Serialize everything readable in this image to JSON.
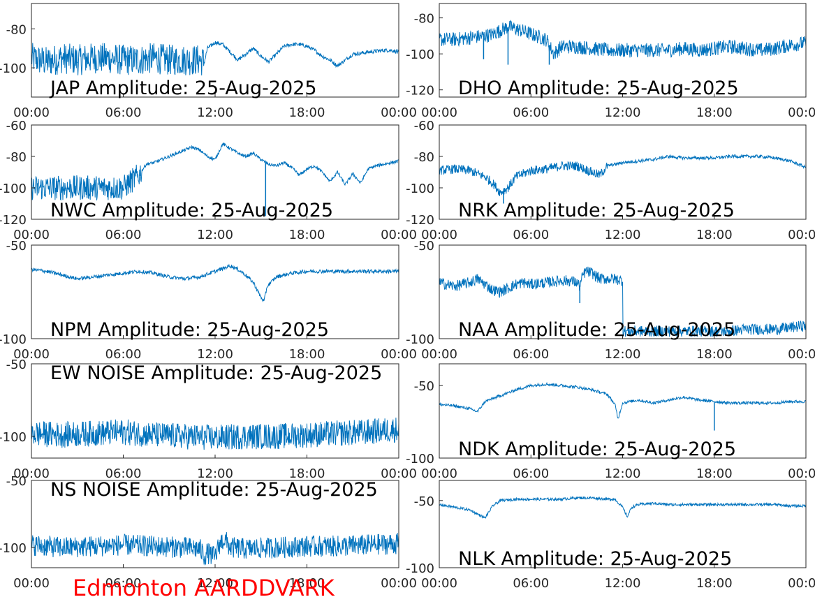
{
  "figure": {
    "station_label": "Edmonton AARDDVARK",
    "station_label_color": "#ff0000",
    "line_color": "#0072bd",
    "x_tick_labels": [
      "00:00",
      "06:00",
      "12:00",
      "18:00",
      "00:00"
    ]
  },
  "chart_data": [
    {
      "type": "line",
      "title": "JAP Amplitude: 25-Aug-2025",
      "x_unit": "hours",
      "xlim": [
        0,
        24
      ],
      "ylim": [
        -115,
        -67
      ],
      "yticks": [
        -80,
        -100
      ],
      "ytick_labels": [
        "-80",
        "-100"
      ],
      "x": [
        0,
        1,
        2,
        3,
        4,
        5,
        6,
        7,
        8,
        9,
        10,
        11,
        11.3,
        11.5,
        12,
        12.5,
        13,
        13.5,
        14,
        14.5,
        15,
        15.5,
        16,
        16.5,
        17,
        17.5,
        18,
        18.5,
        19,
        19.5,
        20,
        20.5,
        21,
        22,
        23,
        23.5,
        24
      ],
      "y": [
        -95,
        -97,
        -95,
        -96,
        -95,
        -95,
        -96,
        -96,
        -95,
        -96,
        -96,
        -96,
        -97,
        -90,
        -87,
        -88,
        -92,
        -96,
        -93,
        -90,
        -94,
        -97,
        -93,
        -89,
        -88,
        -88,
        -89,
        -91,
        -94,
        -96,
        -99,
        -96,
        -93,
        -92,
        -91,
        -91,
        -92
      ],
      "noise_amp": 8,
      "noise_until": 11.3
    },
    {
      "type": "line",
      "title": "DHO Amplitude: 25-Aug-2025",
      "x_unit": "hours",
      "xlim": [
        0,
        24
      ],
      "ylim": [
        -124,
        -72
      ],
      "yticks": [
        -80,
        -100,
        -120
      ],
      "ytick_labels": [
        "-80",
        "-100",
        "-120"
      ],
      "x": [
        0,
        1,
        2,
        3,
        3.5,
        4,
        4.5,
        5,
        6,
        7,
        7.5,
        8,
        9,
        10,
        11,
        12,
        13,
        14,
        15,
        16,
        17,
        18,
        19,
        20,
        21,
        22,
        23,
        24
      ],
      "y": [
        -92,
        -92,
        -91,
        -90,
        -89,
        -87,
        -85,
        -86,
        -89,
        -92,
        -100,
        -96,
        -96,
        -97,
        -98,
        -98,
        -98,
        -98,
        -98,
        -97,
        -98,
        -97,
        -96,
        -97,
        -98,
        -97,
        -95,
        -94
      ],
      "noise_amp": 4,
      "noise_until": 24,
      "spikes": [
        {
          "x": 2.9,
          "y": -103
        },
        {
          "x": 4.5,
          "y": -106
        },
        {
          "x": 7.2,
          "y": -106
        }
      ]
    },
    {
      "type": "line",
      "title": "NWC Amplitude: 25-Aug-2025",
      "x_unit": "hours",
      "xlim": [
        0,
        24
      ],
      "ylim": [
        -120,
        -60
      ],
      "yticks": [
        -60,
        -80,
        -100,
        -120
      ],
      "ytick_labels": [
        "-60",
        "-80",
        "-100",
        "-120"
      ],
      "x": [
        0,
        2,
        4,
        6,
        7,
        7.5,
        8,
        9,
        10,
        10.5,
        11,
        11.5,
        12,
        12.5,
        13,
        13.5,
        14,
        14.5,
        15,
        15.5,
        16,
        16.5,
        17,
        17.5,
        18,
        18.5,
        19,
        19.5,
        20,
        20.5,
        21,
        21.5,
        22,
        22.5,
        23,
        24
      ],
      "y": [
        -100,
        -100,
        -100,
        -100,
        -92,
        -85,
        -84,
        -80,
        -76,
        -74,
        -76,
        -80,
        -82,
        -72,
        -75,
        -78,
        -80,
        -78,
        -82,
        -85,
        -86,
        -84,
        -87,
        -92,
        -88,
        -86,
        -90,
        -96,
        -90,
        -98,
        -91,
        -97,
        -88,
        -86,
        -85,
        -83
      ],
      "noise_amp": 8,
      "noise_until": 7.2,
      "spikes": [
        {
          "x": 15.3,
          "y": -118
        }
      ]
    },
    {
      "type": "line",
      "title": "NRK Amplitude: 25-Aug-2025",
      "x_unit": "hours",
      "xlim": [
        0,
        24
      ],
      "ylim": [
        -120,
        -60
      ],
      "yticks": [
        -60,
        -80,
        -100,
        -120
      ],
      "ytick_labels": [
        "-60",
        "-80",
        "-100",
        "-120"
      ],
      "x": [
        0,
        1,
        2,
        3,
        3.5,
        4,
        4.5,
        5,
        6,
        7,
        8,
        9,
        10,
        10.5,
        11,
        12,
        13,
        14,
        15,
        16,
        17,
        18,
        19,
        20,
        21,
        22,
        23,
        24
      ],
      "y": [
        -89,
        -88,
        -89,
        -93,
        -97,
        -103,
        -100,
        -93,
        -89,
        -88,
        -86,
        -86,
        -90,
        -92,
        -86,
        -84,
        -83,
        -82,
        -80,
        -81,
        -81,
        -81,
        -80,
        -80,
        -80,
        -81,
        -83,
        -87
      ],
      "noise_amp": 3,
      "noise_until": 11,
      "spikes": [
        {
          "x": 4.2,
          "y": -110
        }
      ]
    },
    {
      "type": "line",
      "title": "NPM Amplitude: 25-Aug-2025",
      "x_unit": "hours",
      "xlim": [
        0,
        24
      ],
      "ylim": [
        -100,
        -50
      ],
      "yticks": [
        -50,
        -100
      ],
      "ytick_labels": [
        "-50",
        "-100"
      ],
      "x": [
        0,
        1,
        2,
        3,
        4,
        5,
        6,
        7,
        8,
        9,
        10,
        11,
        12,
        13,
        13.5,
        14,
        14.5,
        15,
        15.2,
        15.4,
        16,
        17,
        18,
        19,
        20,
        21,
        22,
        23,
        24
      ],
      "y": [
        -63,
        -64,
        -66,
        -68,
        -67,
        -66,
        -65,
        -64,
        -65,
        -67,
        -68,
        -67,
        -64,
        -61,
        -63,
        -66,
        -70,
        -78,
        -80,
        -72,
        -67,
        -65,
        -64,
        -64,
        -64,
        -64,
        -64,
        -64,
        -64
      ],
      "noise_amp": 1,
      "noise_until": 24
    },
    {
      "type": "line",
      "title": "NAA Amplitude: 25-Aug-2025",
      "x_unit": "hours",
      "xlim": [
        0,
        24
      ],
      "ylim": [
        -100,
        -50
      ],
      "yticks": [
        -50,
        -100
      ],
      "ytick_labels": [
        "-50",
        "-100"
      ],
      "x": [
        0,
        1,
        2,
        2.5,
        3,
        3.5,
        4,
        4.5,
        5,
        5.5,
        6,
        7,
        8,
        8.5,
        9,
        9.2,
        9.4,
        9.6,
        10,
        10.5,
        11,
        11.5,
        12,
        12.01,
        13,
        14,
        15,
        16,
        17,
        18,
        19,
        20,
        21,
        22,
        23,
        24
      ],
      "y": [
        -70,
        -72,
        -70,
        -68,
        -71,
        -74,
        -75,
        -73,
        -71,
        -70,
        -71,
        -70,
        -69,
        -69,
        -70,
        -72,
        -66,
        -64,
        -65,
        -68,
        -68,
        -68,
        -69,
        -96,
        -96,
        -96,
        -96,
        -96,
        -96,
        -96,
        -96,
        -95,
        -95,
        -95,
        -94,
        -93
      ],
      "noise_amp": 3,
      "noise_until": 24,
      "spikes": [
        {
          "x": 9.2,
          "y": -81
        }
      ]
    },
    {
      "type": "line",
      "title": "EW NOISE Amplitude: 25-Aug-2025",
      "x_unit": "hours",
      "xlim": [
        0,
        24
      ],
      "ylim": [
        -115,
        -50
      ],
      "yticks": [
        -50,
        -100
      ],
      "ytick_labels": [
        "-50",
        "-100"
      ],
      "x": [
        0,
        2,
        4,
        6,
        8,
        10,
        12,
        14,
        16,
        18,
        20,
        22,
        24
      ],
      "y": [
        -98,
        -99,
        -98,
        -97,
        -99,
        -100,
        -101,
        -100,
        -100,
        -99,
        -98,
        -97,
        -95
      ],
      "noise_amp": 9,
      "noise_until": 24
    },
    {
      "type": "line",
      "title": "NDK Amplitude: 25-Aug-2025",
      "x_unit": "hours",
      "xlim": [
        0,
        24
      ],
      "ylim": [
        -100,
        -35
      ],
      "yticks": [
        -50,
        -100
      ],
      "ytick_labels": [
        "-50",
        "-100"
      ],
      "x": [
        0,
        1,
        2,
        2.5,
        3,
        4,
        5,
        6,
        7,
        8,
        9,
        10,
        11,
        11.5,
        11.7,
        12,
        13,
        14,
        15,
        16,
        17,
        18,
        19,
        20,
        21,
        22,
        23,
        24
      ],
      "y": [
        -63,
        -64,
        -66,
        -68,
        -61,
        -57,
        -53,
        -50,
        -49,
        -50,
        -51,
        -53,
        -56,
        -63,
        -73,
        -62,
        -60,
        -62,
        -60,
        -58,
        -60,
        -61,
        -62,
        -62,
        -62,
        -62,
        -61,
        -61
      ],
      "noise_amp": 1,
      "noise_until": 24,
      "spikes": [
        {
          "x": 18,
          "y": -81
        }
      ]
    },
    {
      "type": "line",
      "title": "NS NOISE Amplitude: 25-Aug-2025",
      "x_unit": "hours",
      "xlim": [
        0,
        24
      ],
      "ylim": [
        -115,
        -50
      ],
      "yticks": [
        -50,
        -100
      ],
      "ytick_labels": [
        "-50",
        "-100"
      ],
      "x": [
        0,
        2,
        4,
        6,
        8,
        10,
        11,
        11.3,
        11.5,
        12,
        12.3,
        12.6,
        13,
        14,
        16,
        18,
        20,
        22,
        24
      ],
      "y": [
        -98,
        -100,
        -99,
        -98,
        -99,
        -100,
        -101,
        -106,
        -104,
        -107,
        -97,
        -94,
        -100,
        -101,
        -100,
        -99,
        -99,
        -98,
        -97
      ],
      "noise_amp": 8,
      "noise_until": 24
    },
    {
      "type": "line",
      "title": "NLK Amplitude: 25-Aug-2025",
      "x_unit": "hours",
      "xlim": [
        0,
        24
      ],
      "ylim": [
        -100,
        -35
      ],
      "yticks": [
        -50,
        -100
      ],
      "ytick_labels": [
        "-50",
        "-100"
      ],
      "x": [
        0,
        1,
        2,
        2.5,
        3,
        3.5,
        4,
        5,
        6,
        7,
        8,
        9,
        10,
        11,
        11.5,
        12,
        12.3,
        12.6,
        13,
        14,
        15,
        16,
        17,
        18,
        19,
        20,
        21,
        22,
        23,
        24
      ],
      "y": [
        -53,
        -55,
        -57,
        -60,
        -63,
        -54,
        -50,
        -49,
        -49,
        -49,
        -49,
        -48,
        -48,
        -49,
        -49,
        -55,
        -62,
        -55,
        -53,
        -52,
        -53,
        -53,
        -53,
        -53,
        -53,
        -53,
        -53,
        -53,
        -54,
        -54
      ],
      "noise_amp": 1,
      "noise_until": 24
    }
  ]
}
